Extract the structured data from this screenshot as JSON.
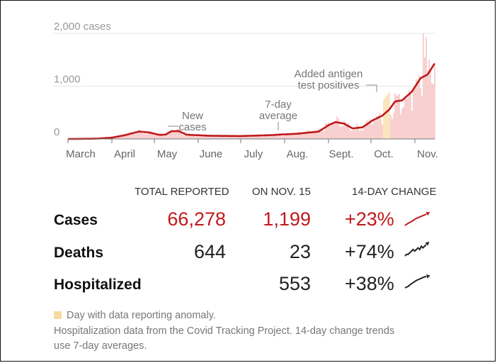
{
  "chart_data": {
    "type": "bar",
    "title": "",
    "units": "cases",
    "ylim": [
      0,
      2000
    ],
    "y_ticks": [
      {
        "value": 0,
        "label": "0"
      },
      {
        "value": 1000,
        "label": "1,000"
      },
      {
        "value": 2000,
        "label": "2,000 cases"
      }
    ],
    "x_labels": [
      "March",
      "April",
      "May",
      "June",
      "July",
      "Aug.",
      "Sept.",
      "Oct.",
      "Nov."
    ],
    "start_date": "2020-03-01",
    "end_date": "2020-11-15",
    "series": [
      {
        "name": "New cases",
        "kind": "bars",
        "color": "#f4bcbc"
      },
      {
        "name": "7-day average",
        "kind": "line",
        "color": "#c0191b"
      }
    ],
    "average_keypoints": [
      {
        "date": "2020-03-01",
        "value": 0
      },
      {
        "date": "2020-03-20",
        "value": 5
      },
      {
        "date": "2020-04-01",
        "value": 25
      },
      {
        "date": "2020-04-10",
        "value": 70
      },
      {
        "date": "2020-04-20",
        "value": 140
      },
      {
        "date": "2020-04-27",
        "value": 125
      },
      {
        "date": "2020-05-05",
        "value": 75
      },
      {
        "date": "2020-05-09",
        "value": 85
      },
      {
        "date": "2020-05-13",
        "value": 145
      },
      {
        "date": "2020-05-18",
        "value": 150
      },
      {
        "date": "2020-05-24",
        "value": 80
      },
      {
        "date": "2020-06-10",
        "value": 60
      },
      {
        "date": "2020-07-01",
        "value": 55
      },
      {
        "date": "2020-07-20",
        "value": 70
      },
      {
        "date": "2020-08-10",
        "value": 100
      },
      {
        "date": "2020-08-25",
        "value": 140
      },
      {
        "date": "2020-09-01",
        "value": 260
      },
      {
        "date": "2020-09-06",
        "value": 320
      },
      {
        "date": "2020-09-12",
        "value": 290
      },
      {
        "date": "2020-09-18",
        "value": 200
      },
      {
        "date": "2020-09-25",
        "value": 220
      },
      {
        "date": "2020-10-02",
        "value": 350
      },
      {
        "date": "2020-10-09",
        "value": 440
      },
      {
        "date": "2020-10-14",
        "value": 560
      },
      {
        "date": "2020-10-18",
        "value": 710
      },
      {
        "date": "2020-10-23",
        "value": 730
      },
      {
        "date": "2020-10-30",
        "value": 900
      },
      {
        "date": "2020-11-05",
        "value": 1150
      },
      {
        "date": "2020-11-10",
        "value": 1220
      },
      {
        "date": "2020-11-15",
        "value": 1430
      }
    ],
    "reporting_anomaly_days": [
      "2020-10-10",
      "2020-10-11",
      "2020-10-12",
      "2020-10-13",
      "2020-10-14"
    ],
    "annotations": [
      {
        "id": "new_cases",
        "lines": [
          "New",
          "cases"
        ],
        "date": "2020-05-12"
      },
      {
        "id": "avg",
        "lines": [
          "7-day",
          "average"
        ],
        "date": "2020-07-31"
      },
      {
        "id": "antigen",
        "lines": [
          "Added antigen",
          "test positives"
        ],
        "date": "2020-10-12"
      }
    ]
  },
  "table": {
    "headers": {
      "total": "TOTAL REPORTED",
      "day": "ON NOV. 15",
      "change": "14-DAY CHANGE"
    },
    "rows": [
      {
        "label": "Cases",
        "total": "66,278",
        "day": "1,199",
        "change": "+23%",
        "highlight": true,
        "trend": [
          820,
          860,
          900,
          930,
          960,
          1000,
          1040,
          1080,
          1100,
          1130,
          1150,
          1180,
          1200,
          1230
        ]
      },
      {
        "label": "Deaths",
        "total": "644",
        "day": "23",
        "change": "+74%",
        "highlight": false,
        "trend": [
          8,
          9,
          9,
          10,
          11,
          12,
          11,
          12,
          13,
          12,
          14,
          13,
          14,
          15
        ]
      },
      {
        "label": "Hospitalized",
        "total": "",
        "day": "553",
        "change": "+38%",
        "highlight": false,
        "trend": [
          400,
          410,
          420,
          440,
          455,
          470,
          485,
          500,
          510,
          520,
          530,
          540,
          548,
          553
        ]
      }
    ]
  },
  "legend": {
    "anomaly": "Day with data reporting anomaly."
  },
  "footnote": {
    "line1": "Hospitalization data from the Covid Tracking Project. 14-day change trends",
    "line2": "use 7-day averages."
  },
  "colors": {
    "red": "#c0191b",
    "bar": "#f4bcbc",
    "anomaly": "#f7dba0",
    "dark": "#222222"
  }
}
